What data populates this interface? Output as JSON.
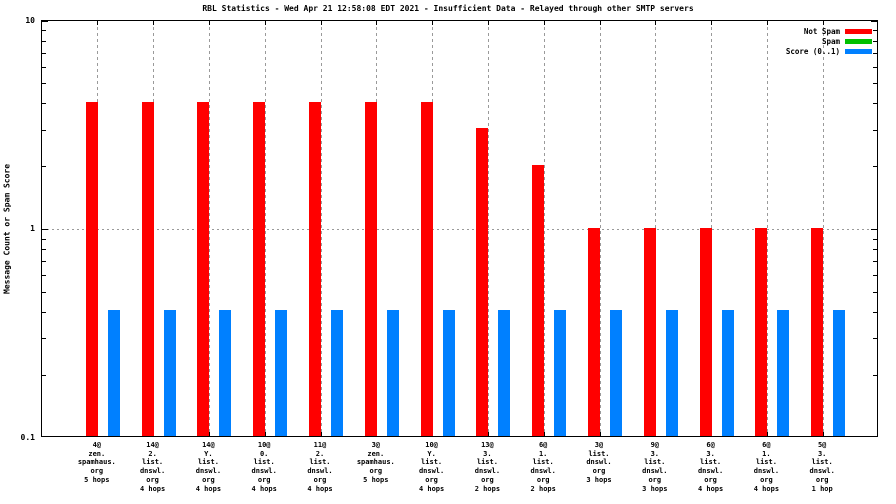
{
  "chart_data": {
    "type": "bar",
    "title": "RBL Statistics - Wed Apr 21 12:58:08 EDT 2021 - Insufficient Data - Relayed through other SMTP servers",
    "xlabel": "",
    "ylabel": "Message Count or Spam Score",
    "scale_y": "log",
    "ylim": [
      0.1,
      10
    ],
    "y_ticks": [
      {
        "value": 10,
        "label": "10"
      },
      {
        "value": 1,
        "label": "1"
      },
      {
        "value": 0.1,
        "label": "0.1"
      }
    ],
    "grid": true,
    "legend_position": "top-right-inside",
    "colors": {
      "grid": "#9a9a9a",
      "axis": "#000000",
      "background": "#ffffff"
    },
    "categories": [
      [
        "4@",
        "zen.",
        "spamhaus.",
        "org",
        "5 hops"
      ],
      [
        "14@",
        "2.",
        "list.",
        "dnswl.",
        "org",
        "4 hops"
      ],
      [
        "14@",
        "Y.",
        "list.",
        "dnswl.",
        "org",
        "4 hops"
      ],
      [
        "10@",
        "0.",
        "list.",
        "dnswl.",
        "org",
        "4 hops"
      ],
      [
        "11@",
        "2.",
        "list.",
        "dnswl.",
        "org",
        "4 hops"
      ],
      [
        "3@",
        "zen.",
        "spamhaus.",
        "org",
        "5 hops"
      ],
      [
        "10@",
        "Y.",
        "list.",
        "dnswl.",
        "org",
        "4 hops"
      ],
      [
        "13@",
        "3.",
        "list.",
        "dnswl.",
        "org",
        "2 hops"
      ],
      [
        "6@",
        "1.",
        "list.",
        "dnswl.",
        "org",
        "2 hops"
      ],
      [
        "3@",
        "list.",
        "dnswl.",
        "org",
        "3 hops"
      ],
      [
        "9@",
        "3.",
        "list.",
        "dnswl.",
        "org",
        "3 hops"
      ],
      [
        "6@",
        "3.",
        "list.",
        "dnswl.",
        "org",
        "4 hops"
      ],
      [
        "6@",
        "1.",
        "list.",
        "dnswl.",
        "org",
        "4 hops"
      ],
      [
        "5@",
        "3.",
        "list.",
        "dnswl.",
        "org",
        "1 hop"
      ]
    ],
    "series": [
      {
        "name": "Not Spam",
        "color": "#ff0000",
        "values": [
          4,
          4,
          4,
          4,
          4,
          4,
          4,
          3,
          2,
          1,
          1,
          1,
          1,
          1
        ]
      },
      {
        "name": "Spam",
        "color": "#00c000",
        "values": [
          0,
          0,
          0,
          0,
          0,
          0,
          0,
          0,
          0,
          0,
          0,
          0,
          0,
          0
        ]
      },
      {
        "name": "Score (0..1)",
        "color": "#0080ff",
        "values": [
          0.4,
          0.4,
          0.4,
          0.4,
          0.4,
          0.4,
          0.4,
          0.4,
          0.4,
          0.4,
          0.4,
          0.4,
          0.4,
          0.4
        ]
      }
    ]
  }
}
